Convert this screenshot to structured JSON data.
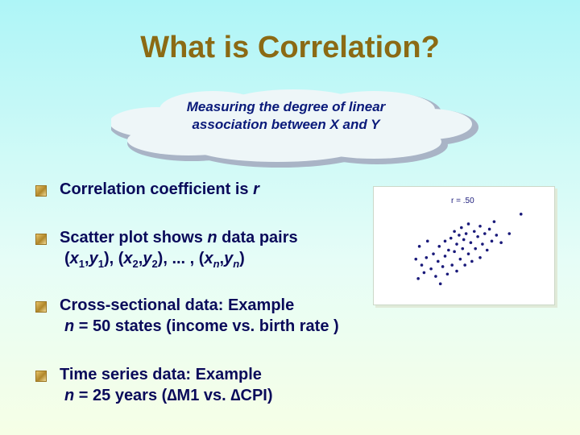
{
  "slide": {
    "title": "What is Correlation?",
    "callout": "Measuring the degree of linear association between X and Y"
  },
  "bullets": [
    {
      "parts": [
        {
          "t": "Correlation coefficient is "
        },
        {
          "t": "r",
          "i": true
        }
      ]
    },
    {
      "parts": [
        {
          "t": "Scatter plot shows "
        },
        {
          "t": "n",
          "i": true
        },
        {
          "t": " data pairs"
        }
      ],
      "line2": [
        {
          "t": "("
        },
        {
          "t": "x",
          "i": true
        },
        {
          "t": "1",
          "s": true
        },
        {
          "t": ","
        },
        {
          "t": "y",
          "i": true
        },
        {
          "t": "1",
          "s": true
        },
        {
          "t": "), ("
        },
        {
          "t": "x",
          "i": true
        },
        {
          "t": "2",
          "s": true
        },
        {
          "t": ","
        },
        {
          "t": "y",
          "i": true
        },
        {
          "t": "2",
          "s": true
        },
        {
          "t": "), ... , ("
        },
        {
          "t": "x",
          "i": true
        },
        {
          "t": "n",
          "s": true,
          "i": true
        },
        {
          "t": ","
        },
        {
          "t": "y",
          "i": true
        },
        {
          "t": "n",
          "s": true,
          "i": true
        },
        {
          "t": ")"
        }
      ]
    },
    {
      "parts": [
        {
          "t": "Cross-sectional data: Example"
        }
      ],
      "line2": [
        {
          "t": "n",
          "i": true
        },
        {
          "t": " = 50 states (income vs. birth rate )"
        }
      ]
    },
    {
      "parts": [
        {
          "t": "Time series data: Example"
        }
      ],
      "line2": [
        {
          "t": "n",
          "i": true
        },
        {
          "t": " = 25 years ("
        },
        {
          "t": "∆M1"
        },
        {
          "t": " vs. "
        },
        {
          "t": "∆CPI"
        },
        {
          "t": ")"
        }
      ]
    }
  ],
  "chart_data": {
    "type": "scatter",
    "title": "r = .50",
    "points": [
      [
        0.05,
        0.38
      ],
      [
        0.07,
        0.12
      ],
      [
        0.08,
        0.55
      ],
      [
        0.1,
        0.3
      ],
      [
        0.12,
        0.2
      ],
      [
        0.14,
        0.4
      ],
      [
        0.15,
        0.62
      ],
      [
        0.18,
        0.25
      ],
      [
        0.2,
        0.45
      ],
      [
        0.22,
        0.15
      ],
      [
        0.24,
        0.35
      ],
      [
        0.25,
        0.55
      ],
      [
        0.26,
        0.05
      ],
      [
        0.28,
        0.28
      ],
      [
        0.3,
        0.42
      ],
      [
        0.3,
        0.62
      ],
      [
        0.32,
        0.18
      ],
      [
        0.33,
        0.5
      ],
      [
        0.35,
        0.66
      ],
      [
        0.36,
        0.3
      ],
      [
        0.38,
        0.75
      ],
      [
        0.38,
        0.48
      ],
      [
        0.4,
        0.58
      ],
      [
        0.4,
        0.22
      ],
      [
        0.42,
        0.7
      ],
      [
        0.43,
        0.38
      ],
      [
        0.44,
        0.8
      ],
      [
        0.45,
        0.52
      ],
      [
        0.46,
        0.64
      ],
      [
        0.47,
        0.3
      ],
      [
        0.48,
        0.72
      ],
      [
        0.5,
        0.45
      ],
      [
        0.5,
        0.85
      ],
      [
        0.52,
        0.6
      ],
      [
        0.53,
        0.35
      ],
      [
        0.55,
        0.75
      ],
      [
        0.56,
        0.52
      ],
      [
        0.58,
        0.68
      ],
      [
        0.6,
        0.82
      ],
      [
        0.6,
        0.4
      ],
      [
        0.62,
        0.58
      ],
      [
        0.64,
        0.72
      ],
      [
        0.66,
        0.5
      ],
      [
        0.68,
        0.78
      ],
      [
        0.7,
        0.62
      ],
      [
        0.72,
        0.88
      ],
      [
        0.74,
        0.7
      ],
      [
        0.78,
        0.6
      ],
      [
        0.85,
        0.72
      ],
      [
        0.95,
        0.98
      ]
    ]
  }
}
